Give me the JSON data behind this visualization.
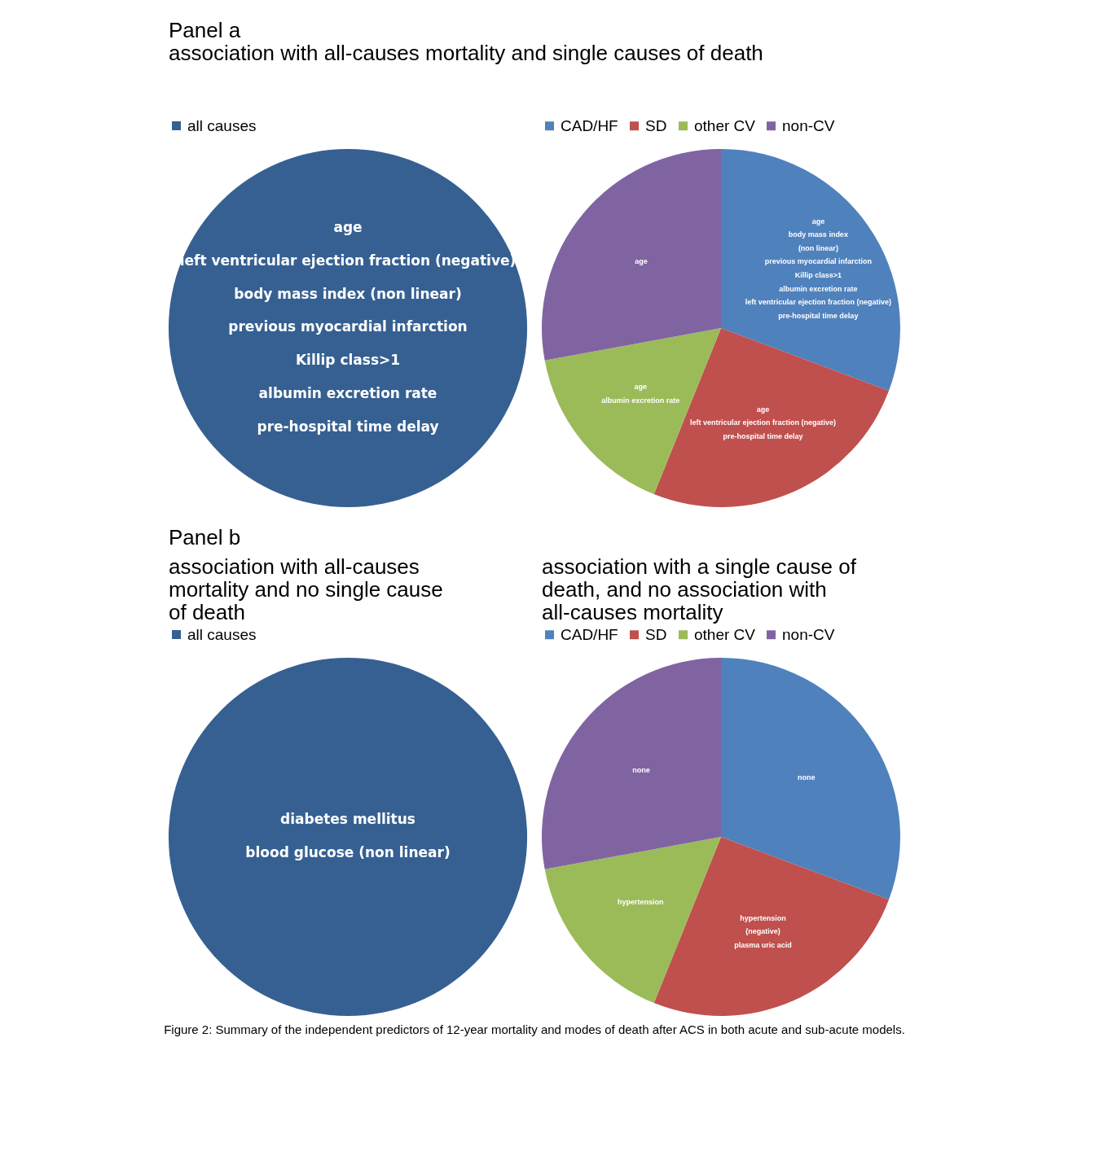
{
  "chart_data": [
    {
      "type": "pie",
      "title": "association with all-causes mortality and single causes of death",
      "annotations": [
        "Panel a"
      ],
      "categories": [
        "all causes"
      ],
      "values": [
        100
      ],
      "colors": [
        "#366092"
      ],
      "value_labels": [
        "age\nleft ventricular ejection fraction (negative)\nbody mass index (non linear)\nprevious myocardial infarction\nKillip class>1\nalbumin excretion rate\npre-hospital time delay"
      ],
      "legend": "top"
    },
    {
      "type": "pie",
      "categories": [
        "CAD/HF",
        "SD",
        "other CV",
        "non-CV"
      ],
      "values": [
        30.7,
        25.4,
        16.0,
        27.9
      ],
      "colors": [
        "#4f81bd",
        "#c0504d",
        "#9bbb59",
        "#8064a2"
      ],
      "value_labels": [
        "age\nbody mass index\n(non linear)\nprevious myocardial infarction\nKillip class>1\nalbumin excretion rate\nleft ventricular ejection fraction (negative)\npre-hospital time delay",
        "age\nleft ventricular ejection fraction (negative)\npre-hospital time delay",
        "age\nalbumin excretion rate",
        "age"
      ],
      "legend": "top"
    },
    {
      "type": "pie",
      "title": "association with all-causes mortality and no single cause of death",
      "annotations": [
        "Panel b"
      ],
      "categories": [
        "all causes"
      ],
      "values": [
        100
      ],
      "colors": [
        "#366092"
      ],
      "value_labels": [
        "diabetes mellitus\nblood glucose (non linear)"
      ],
      "legend": "top"
    },
    {
      "type": "pie",
      "title": "association with a single cause of death, and no association with all-causes mortality",
      "annotations": [
        "Figure 2: Summary of the independent predictors of 12-year mortality and modes of death after ACS in both acute and sub-acute models."
      ],
      "categories": [
        "CAD/HF",
        "SD",
        "other CV",
        "non-CV"
      ],
      "values": [
        30.7,
        25.4,
        16.0,
        27.9
      ],
      "colors": [
        "#4f81bd",
        "#c0504d",
        "#9bbb59",
        "#8064a2"
      ],
      "value_labels": [
        "none",
        "hypertension\n(negative)\nplasma uric acid",
        "hypertension",
        "none"
      ],
      "legend": "top"
    }
  ]
}
